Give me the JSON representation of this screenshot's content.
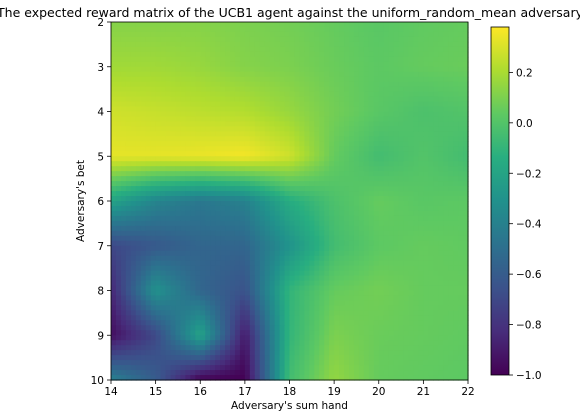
{
  "chart_data": {
    "type": "heatmap",
    "title": "The expected reward matrix of the UCB1 agent against the uniform_random_mean adversary",
    "xlabel": "Adversary's sum hand",
    "ylabel": "Adversary's bet",
    "x": [
      14,
      15,
      16,
      17,
      18,
      19,
      20,
      21,
      22
    ],
    "y": [
      2,
      3,
      4,
      5,
      6,
      7,
      8,
      9,
      10
    ],
    "x_ticks": [
      "14",
      "15",
      "16",
      "17",
      "18",
      "19",
      "20",
      "21",
      "22"
    ],
    "y_ticks": [
      "2",
      "3",
      "4",
      "5",
      "6",
      "7",
      "8",
      "9",
      "10"
    ],
    "colorbar": {
      "ticks": [
        "0.2",
        "0.0",
        "−0.2",
        "−0.4",
        "−0.6",
        "−0.8",
        "−1.0"
      ],
      "tick_values": [
        0.2,
        0.0,
        -0.2,
        -0.4,
        -0.6,
        -0.8,
        -1.0
      ],
      "vmin": -1.0,
      "vmax": 0.38,
      "colormap": "viridis"
    },
    "values": [
      [
        0.12,
        0.12,
        0.12,
        0.1,
        0.08,
        0.05,
        0.02,
        0.04,
        0.05
      ],
      [
        0.18,
        0.18,
        0.16,
        0.12,
        0.1,
        0.06,
        0.03,
        0.05,
        0.06
      ],
      [
        0.28,
        0.26,
        0.24,
        0.22,
        0.16,
        0.08,
        0.02,
        -0.02,
        0.0
      ],
      [
        0.33,
        0.33,
        0.34,
        0.36,
        0.28,
        0.05,
        -0.05,
        0.0,
        -0.05
      ],
      [
        -0.2,
        -0.38,
        -0.45,
        -0.4,
        -0.15,
        -0.02,
        0.05,
        0.02,
        0.03
      ],
      [
        -0.7,
        -0.62,
        -0.55,
        -0.55,
        -0.3,
        -0.05,
        0.03,
        0.05,
        0.04
      ],
      [
        -0.85,
        -0.3,
        -0.55,
        -0.65,
        -0.1,
        0.05,
        0.08,
        0.05,
        0.05
      ],
      [
        -0.95,
        -0.7,
        -0.2,
        -0.9,
        -0.1,
        0.1,
        0.06,
        0.05,
        0.04
      ],
      [
        -0.4,
        -0.6,
        -1.0,
        -1.0,
        -0.05,
        0.15,
        0.05,
        0.04,
        0.03
      ]
    ]
  }
}
